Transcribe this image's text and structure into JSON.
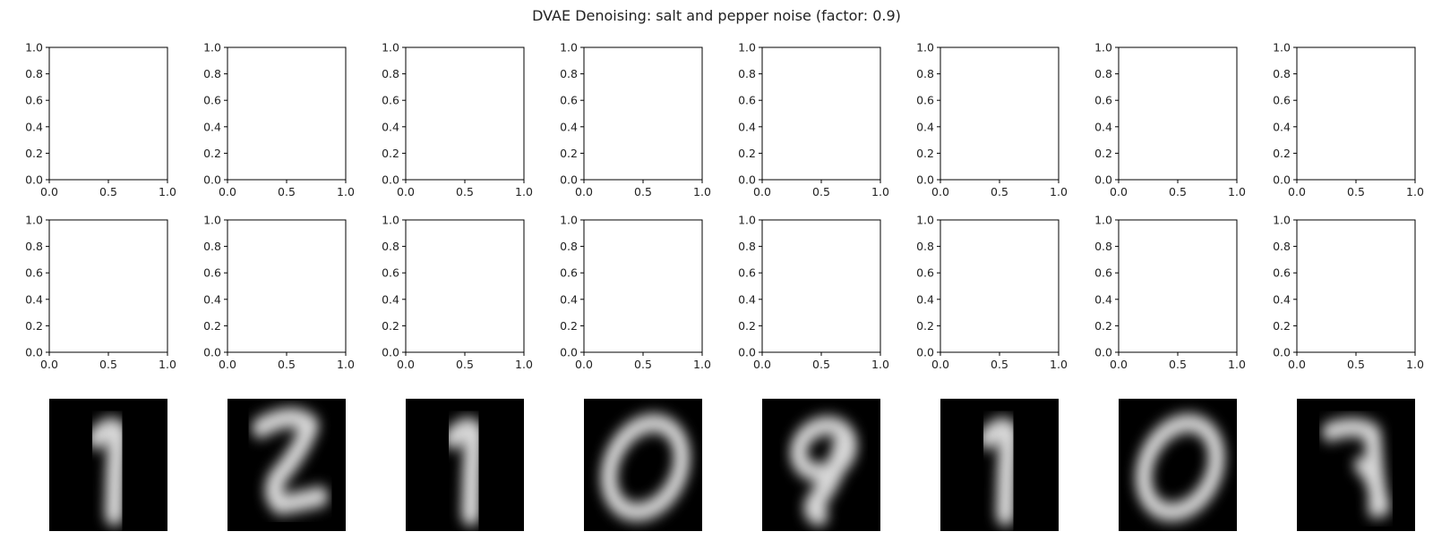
{
  "title": "DVAE Denoising: salt and pepper noise (factor: 0.9)",
  "chart_data": {
    "type": "image-grid",
    "title": "DVAE Denoising: salt and pepper noise (factor: 0.9)",
    "rows": 3,
    "cols": 8,
    "empty_axes": {
      "rows": [
        0,
        1
      ],
      "xlim": [
        0.0,
        1.0
      ],
      "ylim": [
        0.0,
        1.0
      ],
      "xticks": [
        "0.0",
        "0.5",
        "1.0"
      ],
      "yticks": [
        "0.0",
        "0.2",
        "0.4",
        "0.6",
        "0.8",
        "1.0"
      ]
    },
    "image_row": {
      "row": 2,
      "colormap": "gray",
      "digits_shown": [
        "1",
        "2",
        "1",
        "0",
        "9",
        "1",
        "0",
        "7"
      ]
    }
  }
}
